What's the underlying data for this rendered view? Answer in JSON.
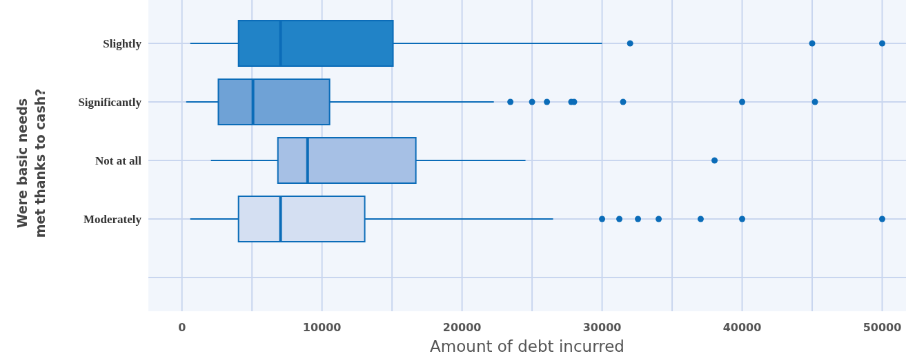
{
  "chart_data": {
    "type": "box",
    "orientation": "horizontal",
    "categories": [
      "Slightly",
      "Significantly",
      "Not at all",
      "Moderately",
      null
    ],
    "boxes": [
      {
        "low": 590,
        "q1": 4040,
        "median": 7040,
        "q3": 15070,
        "high": 30000,
        "outliers": [
          32000,
          45000,
          50000
        ]
      },
      {
        "low": 300,
        "q1": 2600,
        "median": 5070,
        "q3": 10540,
        "high": 22270,
        "outliers": [
          23450,
          25000,
          26060,
          27800,
          28000,
          31500,
          40000,
          45200
        ]
      },
      {
        "low": 2070,
        "q1": 6850,
        "median": 8970,
        "q3": 16700,
        "high": 24530,
        "outliers": [
          38030
        ]
      },
      {
        "low": 590,
        "q1": 4040,
        "median": 7040,
        "q3": 13050,
        "high": 26500,
        "outliers": [
          30000,
          31230,
          32560,
          34040,
          37040,
          40000,
          50000
        ]
      },
      null
    ],
    "colors": [
      "#2183c7",
      "#6fa2d6",
      "#a6c0e5",
      "#d4dff2",
      null
    ],
    "color": "#0b6cb8",
    "xlabel": "Amount of debt incurred",
    "ylabel": "Were basic needs met thanks to cash?",
    "xlim": [
      -2400,
      51700
    ],
    "xticks": [
      0,
      {
        "value": 5000,
        "label": null
      },
      10000,
      {
        "value": 15000,
        "label": null
      },
      20000,
      {
        "value": 25000,
        "label": null
      },
      30000,
      {
        "value": 35000,
        "label": null
      },
      40000,
      {
        "value": 45000,
        "label": null
      },
      50000
    ],
    "grid": true
  }
}
